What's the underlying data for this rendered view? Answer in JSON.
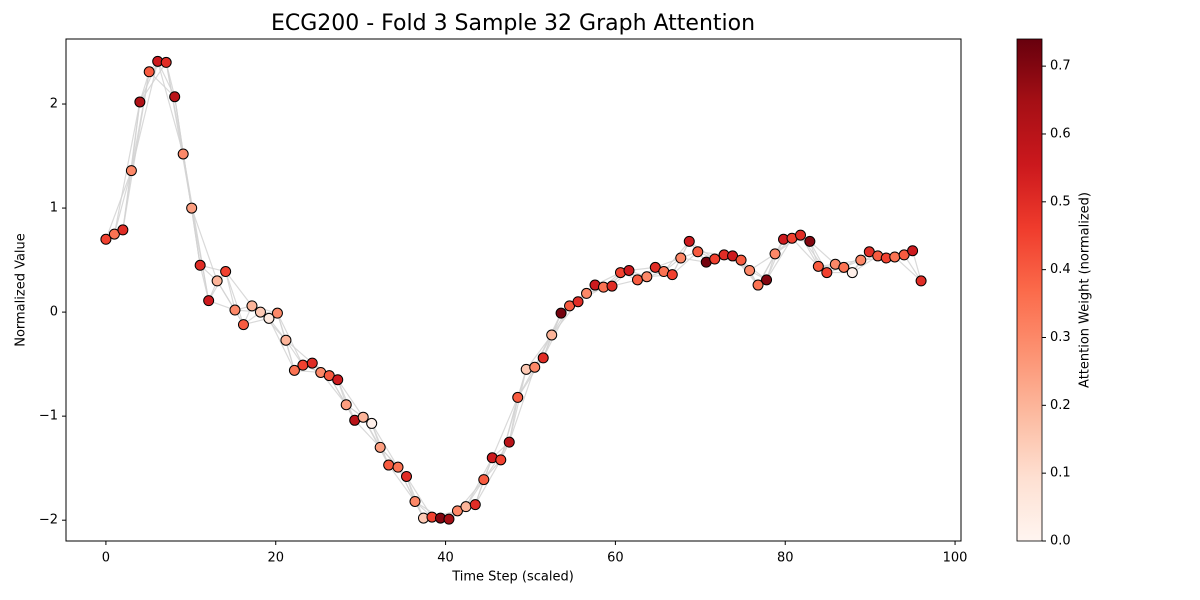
{
  "chart_data": {
    "type": "scatter",
    "title": "ECG200 - Fold 3 Sample 32 Graph Attention",
    "xlabel": "Time Step (scaled)",
    "ylabel": "Normalized Value",
    "colorbar_label": "Attention Weight (normalized)",
    "colormap": "Reds",
    "x": [
      0,
      1.0,
      2.0,
      3.0,
      4.0,
      5.1,
      6.1,
      7.1,
      8.1,
      9.1,
      10.1,
      11.1,
      12.1,
      13.1,
      14.1,
      15.2,
      16.2,
      17.2,
      18.2,
      19.2,
      20.2,
      21.2,
      22.2,
      23.2,
      24.3,
      25.3,
      26.3,
      27.3,
      28.3,
      29.3,
      30.3,
      31.3,
      32.3,
      33.3,
      34.4,
      35.4,
      36.4,
      37.4,
      38.4,
      39.4,
      40.4,
      41.4,
      42.4,
      43.5,
      44.5,
      45.5,
      46.5,
      47.5,
      48.5,
      49.5,
      50.5,
      51.5,
      52.5,
      53.6,
      54.6,
      55.6,
      56.6,
      57.6,
      58.6,
      59.6,
      60.6,
      61.6,
      62.6,
      63.7,
      64.7,
      65.7,
      66.7,
      67.7,
      68.7,
      69.7,
      70.7,
      71.7,
      72.8,
      73.8,
      74.8,
      75.8,
      76.8,
      77.8,
      78.8,
      79.8,
      80.8,
      81.8,
      82.9,
      83.9,
      84.9,
      85.9,
      86.9,
      87.9,
      88.9,
      89.9,
      90.9,
      91.9,
      92.9,
      94.0,
      95.0,
      96.0
    ],
    "values": [
      0.7,
      0.75,
      0.79,
      1.36,
      2.02,
      2.31,
      2.41,
      2.4,
      2.07,
      1.52,
      1.0,
      0.45,
      0.11,
      0.3,
      0.39,
      0.02,
      -0.12,
      0.06,
      0.0,
      -0.06,
      -0.01,
      -0.27,
      -0.56,
      -0.51,
      -0.49,
      -0.58,
      -0.61,
      -0.65,
      -0.89,
      -1.04,
      -1.01,
      -1.07,
      -1.3,
      -1.47,
      -1.49,
      -1.58,
      -1.82,
      -1.98,
      -1.97,
      -1.98,
      -1.99,
      -1.91,
      -1.87,
      -1.85,
      -1.61,
      -1.4,
      -1.42,
      -1.25,
      -0.82,
      -0.55,
      -0.53,
      -0.44,
      -0.22,
      -0.01,
      0.06,
      0.1,
      0.18,
      0.26,
      0.24,
      0.25,
      0.38,
      0.4,
      0.31,
      0.34,
      0.43,
      0.39,
      0.36,
      0.52,
      0.68,
      0.58,
      0.48,
      0.51,
      0.55,
      0.54,
      0.5,
      0.4,
      0.26,
      0.31,
      0.56,
      0.7,
      0.71,
      0.74,
      0.68,
      0.44,
      0.38,
      0.46,
      0.43,
      0.38,
      0.5,
      0.58,
      0.54,
      0.52,
      0.53,
      0.55,
      0.59,
      0.3
    ],
    "attention": [
      0.45,
      0.35,
      0.5,
      0.3,
      0.62,
      0.4,
      0.55,
      0.5,
      0.6,
      0.3,
      0.25,
      0.5,
      0.55,
      0.2,
      0.45,
      0.3,
      0.4,
      0.2,
      0.15,
      0.05,
      0.3,
      0.2,
      0.35,
      0.45,
      0.5,
      0.3,
      0.4,
      0.55,
      0.25,
      0.6,
      0.2,
      0.02,
      0.25,
      0.4,
      0.35,
      0.5,
      0.3,
      0.15,
      0.45,
      0.7,
      0.65,
      0.3,
      0.2,
      0.5,
      0.4,
      0.55,
      0.45,
      0.6,
      0.4,
      0.15,
      0.3,
      0.5,
      0.2,
      0.72,
      0.4,
      0.5,
      0.3,
      0.55,
      0.35,
      0.5,
      0.45,
      0.55,
      0.4,
      0.3,
      0.5,
      0.35,
      0.45,
      0.3,
      0.55,
      0.4,
      0.72,
      0.45,
      0.5,
      0.55,
      0.4,
      0.3,
      0.35,
      0.7,
      0.3,
      0.55,
      0.45,
      0.5,
      0.7,
      0.4,
      0.45,
      0.3,
      0.35,
      0.02,
      0.3,
      0.5,
      0.4,
      0.45,
      0.35,
      0.4,
      0.55,
      0.5
    ],
    "xlim": [
      -4.7,
      100.7
    ],
    "ylim": [
      -2.2,
      2.625
    ],
    "clim": [
      0,
      0.74
    ],
    "xticks": [
      0,
      20,
      40,
      60,
      80,
      100
    ],
    "yticks": [
      {
        "value": -2,
        "label": "−2"
      },
      {
        "value": -1,
        "label": "−1"
      },
      0,
      1,
      2
    ],
    "cticks": [
      {
        "value": 0,
        "label": "0.0"
      },
      {
        "value": 0.1,
        "label": "0.1"
      },
      {
        "value": 0.2,
        "label": "0.2"
      },
      {
        "value": 0.3,
        "label": "0.3"
      },
      {
        "value": 0.4,
        "label": "0.4"
      },
      {
        "value": 0.5,
        "label": "0.5"
      },
      {
        "value": 0.6,
        "label": "0.6"
      },
      {
        "value": 0.7,
        "label": "0.7"
      }
    ]
  }
}
